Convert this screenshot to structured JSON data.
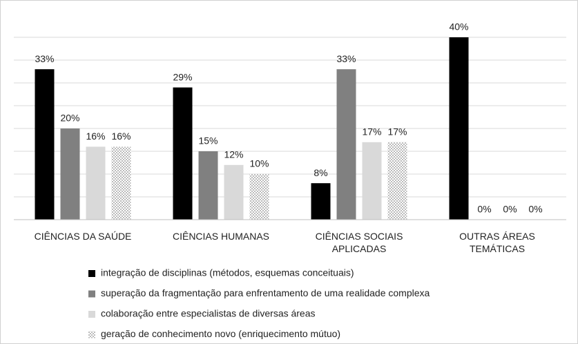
{
  "chart_data": {
    "type": "bar",
    "categories": [
      "CIÊNCIAS DA SAÚDE",
      "CIÊNCIAS HUMANAS",
      "CIÊNCIAS SOCIAIS APLICADAS",
      "OUTRAS ÁREAS TEMÁTICAS"
    ],
    "series": [
      {
        "name": "integração de disciplinas (métodos, esquemas conceituais)",
        "color": "#000000",
        "values": [
          33,
          29,
          8,
          40
        ],
        "value_labels": [
          "33%",
          "29%",
          "8%",
          "40%"
        ]
      },
      {
        "name": "superação da fragmentação para enfrentamento de uma realidade complexa",
        "color": "#808080",
        "values": [
          20,
          15,
          33,
          0
        ],
        "value_labels": [
          "20%",
          "15%",
          "33%",
          "0%"
        ]
      },
      {
        "name": "colaboração entre especialistas de diversas áreas",
        "color": "#d9d9d9",
        "values": [
          16,
          12,
          17,
          0
        ],
        "value_labels": [
          "16%",
          "12%",
          "17%",
          "0%"
        ]
      },
      {
        "name": "geração de conhecimento novo (enriquecimento mútuo)",
        "color": "#c8c8c8",
        "pattern": "dots",
        "values": [
          16,
          10,
          17,
          0
        ],
        "value_labels": [
          "16%",
          "10%",
          "17%",
          "0%"
        ]
      }
    ],
    "ylim": [
      0,
      40
    ],
    "yticks": [
      0,
      5,
      10,
      15,
      20,
      25,
      30,
      35,
      40
    ],
    "grid": true,
    "legend": "bottom"
  }
}
